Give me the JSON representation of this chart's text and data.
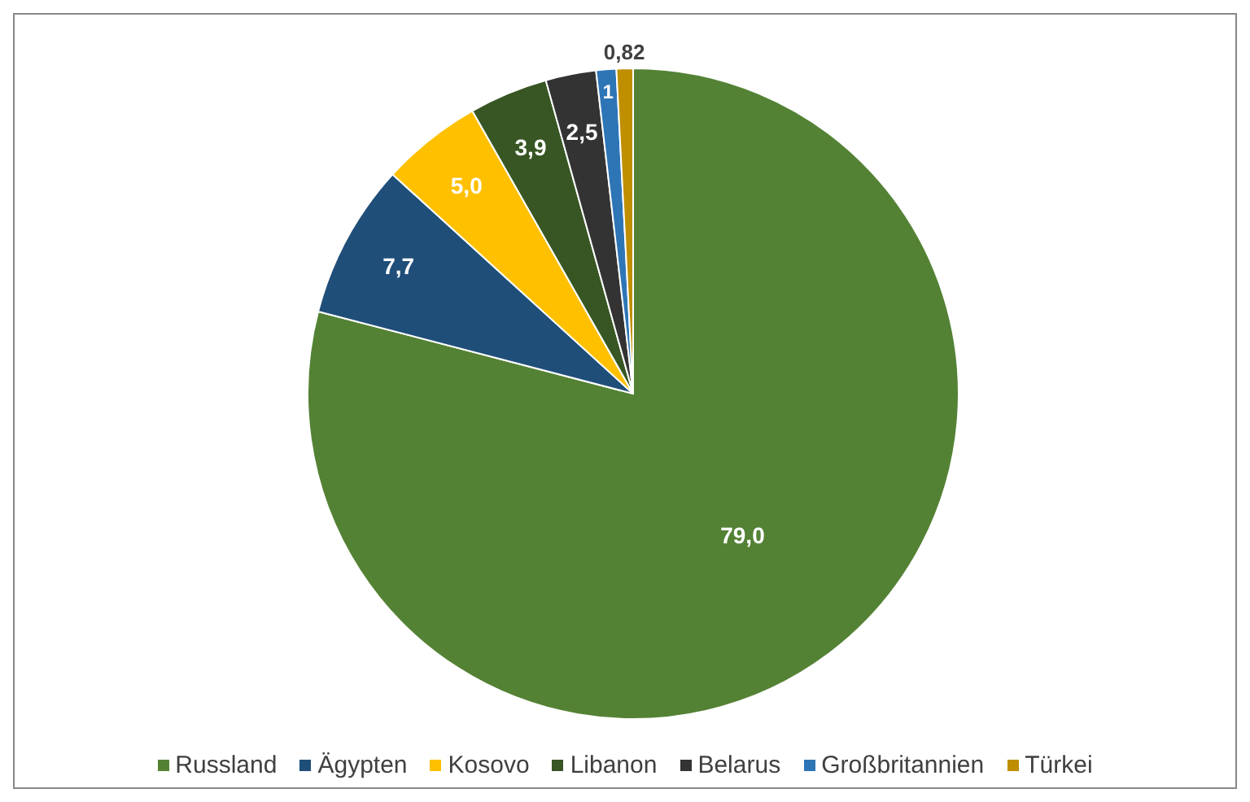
{
  "chart_data": {
    "type": "pie",
    "categories": [
      "Russland",
      "Ägypten",
      "Kosovo",
      "Libanon",
      "Belarus",
      "Großbritannien",
      "Türkei"
    ],
    "values": [
      79.0,
      7.7,
      5.0,
      3.9,
      2.5,
      1,
      0.82
    ],
    "value_labels": [
      "79,0",
      "7,7",
      "5,0",
      "3,9",
      "2,5",
      "1",
      "0,82"
    ],
    "colors": [
      "#548235",
      "#1f4e79",
      "#ffc000",
      "#375623",
      "#333333",
      "#2e75b6",
      "#bf8f00"
    ],
    "legend": "bottom"
  }
}
